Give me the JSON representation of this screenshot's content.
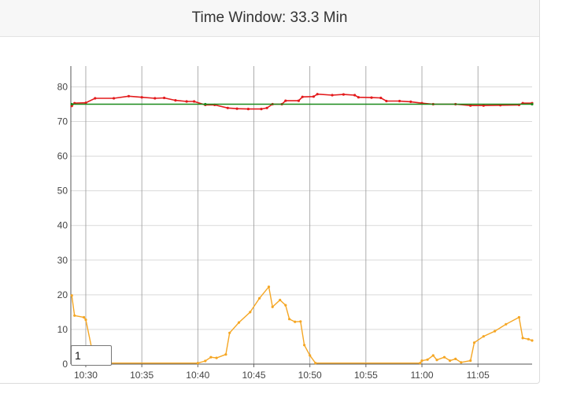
{
  "header": {
    "title": "Time Window: 33.3 Min"
  },
  "window_input": {
    "value": "1"
  },
  "colors": {
    "red": "#e31a1c",
    "green": "#1a8a1a",
    "orange": "#f5a623",
    "grid": "#d9d9d9",
    "vgrid": "#999999"
  },
  "chart_data": {
    "type": "line",
    "title": "Time Window: 33.3 Min",
    "xlabel": "",
    "ylabel": "",
    "x_ticks": [
      "10:30",
      "10:35",
      "10:40",
      "10:45",
      "10:50",
      "10:55",
      "11:00",
      "11:05"
    ],
    "y_ticks": [
      0,
      10,
      20,
      30,
      40,
      50,
      60,
      70,
      80
    ],
    "xlim": [
      "10:28:40",
      "11:09:50"
    ],
    "ylim": [
      0,
      86
    ],
    "grid": true,
    "series": [
      {
        "color": "#e31a1c",
        "points": [
          [
            "10:28:45",
            74.5
          ],
          [
            "10:29:00",
            75.3
          ],
          [
            "10:30:00",
            75.4
          ],
          [
            "10:30:50",
            76.7
          ],
          [
            "10:32:30",
            76.7
          ],
          [
            "10:33:50",
            77.3
          ],
          [
            "10:35:00",
            77.0
          ],
          [
            "10:36:10",
            76.7
          ],
          [
            "10:37:00",
            76.8
          ],
          [
            "10:38:00",
            76.1
          ],
          [
            "10:39:00",
            75.8
          ],
          [
            "10:39:40",
            75.8
          ],
          [
            "10:40:40",
            74.8
          ],
          [
            "10:41:30",
            74.8
          ],
          [
            "10:42:40",
            73.9
          ],
          [
            "10:43:30",
            73.7
          ],
          [
            "10:44:30",
            73.6
          ],
          [
            "10:45:40",
            73.6
          ],
          [
            "10:46:10",
            73.9
          ],
          [
            "10:46:40",
            75.0
          ],
          [
            "10:47:30",
            75.0
          ],
          [
            "10:47:50",
            76.0
          ],
          [
            "10:49:00",
            76.0
          ],
          [
            "10:49:20",
            77.1
          ],
          [
            "10:50:20",
            77.2
          ],
          [
            "10:50:40",
            77.9
          ],
          [
            "10:52:00",
            77.6
          ],
          [
            "10:53:00",
            77.8
          ],
          [
            "10:54:00",
            77.6
          ],
          [
            "10:54:20",
            77.0
          ],
          [
            "10:55:30",
            76.9
          ],
          [
            "10:56:20",
            76.8
          ],
          [
            "10:56:50",
            75.9
          ],
          [
            "10:58:00",
            75.9
          ],
          [
            "10:59:00",
            75.7
          ],
          [
            "11:00:00",
            75.3
          ],
          [
            "11:01:00",
            75.0
          ],
          [
            "11:03:00",
            75.0
          ],
          [
            "11:04:20",
            74.6
          ],
          [
            "11:05:30",
            74.6
          ],
          [
            "11:07:00",
            74.7
          ],
          [
            "11:08:40",
            74.8
          ],
          [
            "11:09:00",
            75.3
          ],
          [
            "11:09:50",
            75.3
          ]
        ]
      },
      {
        "color": "#1a8a1a",
        "points": [
          [
            "10:28:45",
            75.0
          ],
          [
            "10:40:40",
            75.0
          ],
          [
            "11:09:50",
            75.0
          ]
        ]
      },
      {
        "color": "#f5a623",
        "points": [
          [
            "10:28:45",
            19.8
          ],
          [
            "10:29:00",
            14.0
          ],
          [
            "10:29:50",
            13.5
          ],
          [
            "10:30:00",
            12.8
          ],
          [
            "10:30:30",
            5.0
          ],
          [
            "10:31:00",
            0.3
          ],
          [
            "10:40:00",
            0.3
          ],
          [
            "10:40:40",
            0.9
          ],
          [
            "10:41:10",
            2.0
          ],
          [
            "10:41:40",
            1.8
          ],
          [
            "10:42:30",
            2.8
          ],
          [
            "10:42:50",
            9.0
          ],
          [
            "10:43:40",
            12.0
          ],
          [
            "10:44:40",
            15.0
          ],
          [
            "10:45:30",
            19.0
          ],
          [
            "10:46:20",
            22.3
          ],
          [
            "10:46:40",
            16.5
          ],
          [
            "10:47:20",
            18.5
          ],
          [
            "10:47:50",
            17.0
          ],
          [
            "10:48:10",
            13.0
          ],
          [
            "10:48:40",
            12.2
          ],
          [
            "10:49:10",
            12.3
          ],
          [
            "10:49:30",
            5.5
          ],
          [
            "10:50:00",
            2.5
          ],
          [
            "10:50:30",
            0.3
          ],
          [
            "10:59:50",
            0.3
          ],
          [
            "11:00:00",
            1.0
          ],
          [
            "11:00:30",
            1.3
          ],
          [
            "11:01:00",
            2.5
          ],
          [
            "11:01:20",
            1.2
          ],
          [
            "11:02:00",
            2.0
          ],
          [
            "11:02:30",
            1.0
          ],
          [
            "11:03:00",
            1.5
          ],
          [
            "11:03:30",
            0.5
          ],
          [
            "11:04:20",
            1.0
          ],
          [
            "11:04:40",
            6.2
          ],
          [
            "11:05:30",
            8.0
          ],
          [
            "11:06:30",
            9.5
          ],
          [
            "11:07:30",
            11.5
          ],
          [
            "11:08:40",
            13.5
          ],
          [
            "11:09:00",
            7.5
          ],
          [
            "11:09:30",
            7.2
          ],
          [
            "11:09:50",
            6.8
          ]
        ]
      }
    ]
  }
}
